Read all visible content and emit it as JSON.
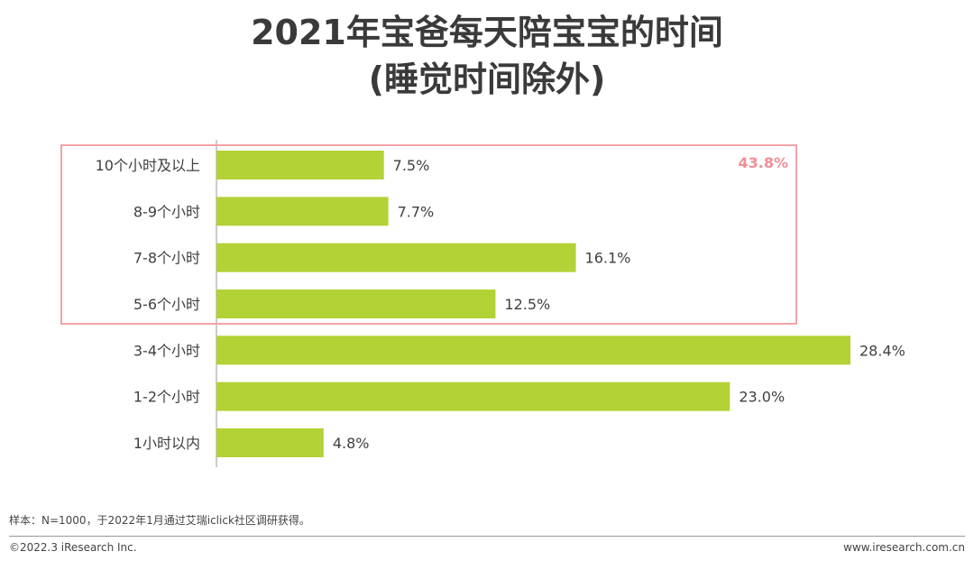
{
  "title_line1": "2021年宝爸每天陪宝宝的时间",
  "title_line2": "(睡觉时间除外)",
  "chart_data": {
    "type": "bar",
    "orientation": "horizontal",
    "categories": [
      "10个小时及以上",
      "8-9个小时",
      "7-8个小时",
      "5-6个小时",
      "3-4个小时",
      "1-2个小时",
      "1小时以内"
    ],
    "values": [
      7.5,
      7.7,
      16.1,
      12.5,
      28.4,
      23.0,
      4.8
    ],
    "value_labels": [
      "7.5%",
      "7.7%",
      "16.1%",
      "12.5%",
      "28.4%",
      "23.0%",
      "4.8%"
    ],
    "xlim": [
      0,
      30
    ],
    "grid": false,
    "legend": "none",
    "highlight": {
      "categories": [
        "10个小时及以上",
        "8-9个小时",
        "7-8个小时",
        "5-6个小时"
      ],
      "total_label": "43.8%"
    }
  },
  "colors": {
    "bar": "#b2d235",
    "highlight": "#f2a3a8",
    "highlight_text": "#ef8f95",
    "axis": "#999999"
  },
  "footnote": "样本：N=1000，于2022年1月通过艾瑞iclick社区调研获得。",
  "copyright": "©2022.3 iResearch Inc.",
  "website": "www.iresearch.com.cn"
}
